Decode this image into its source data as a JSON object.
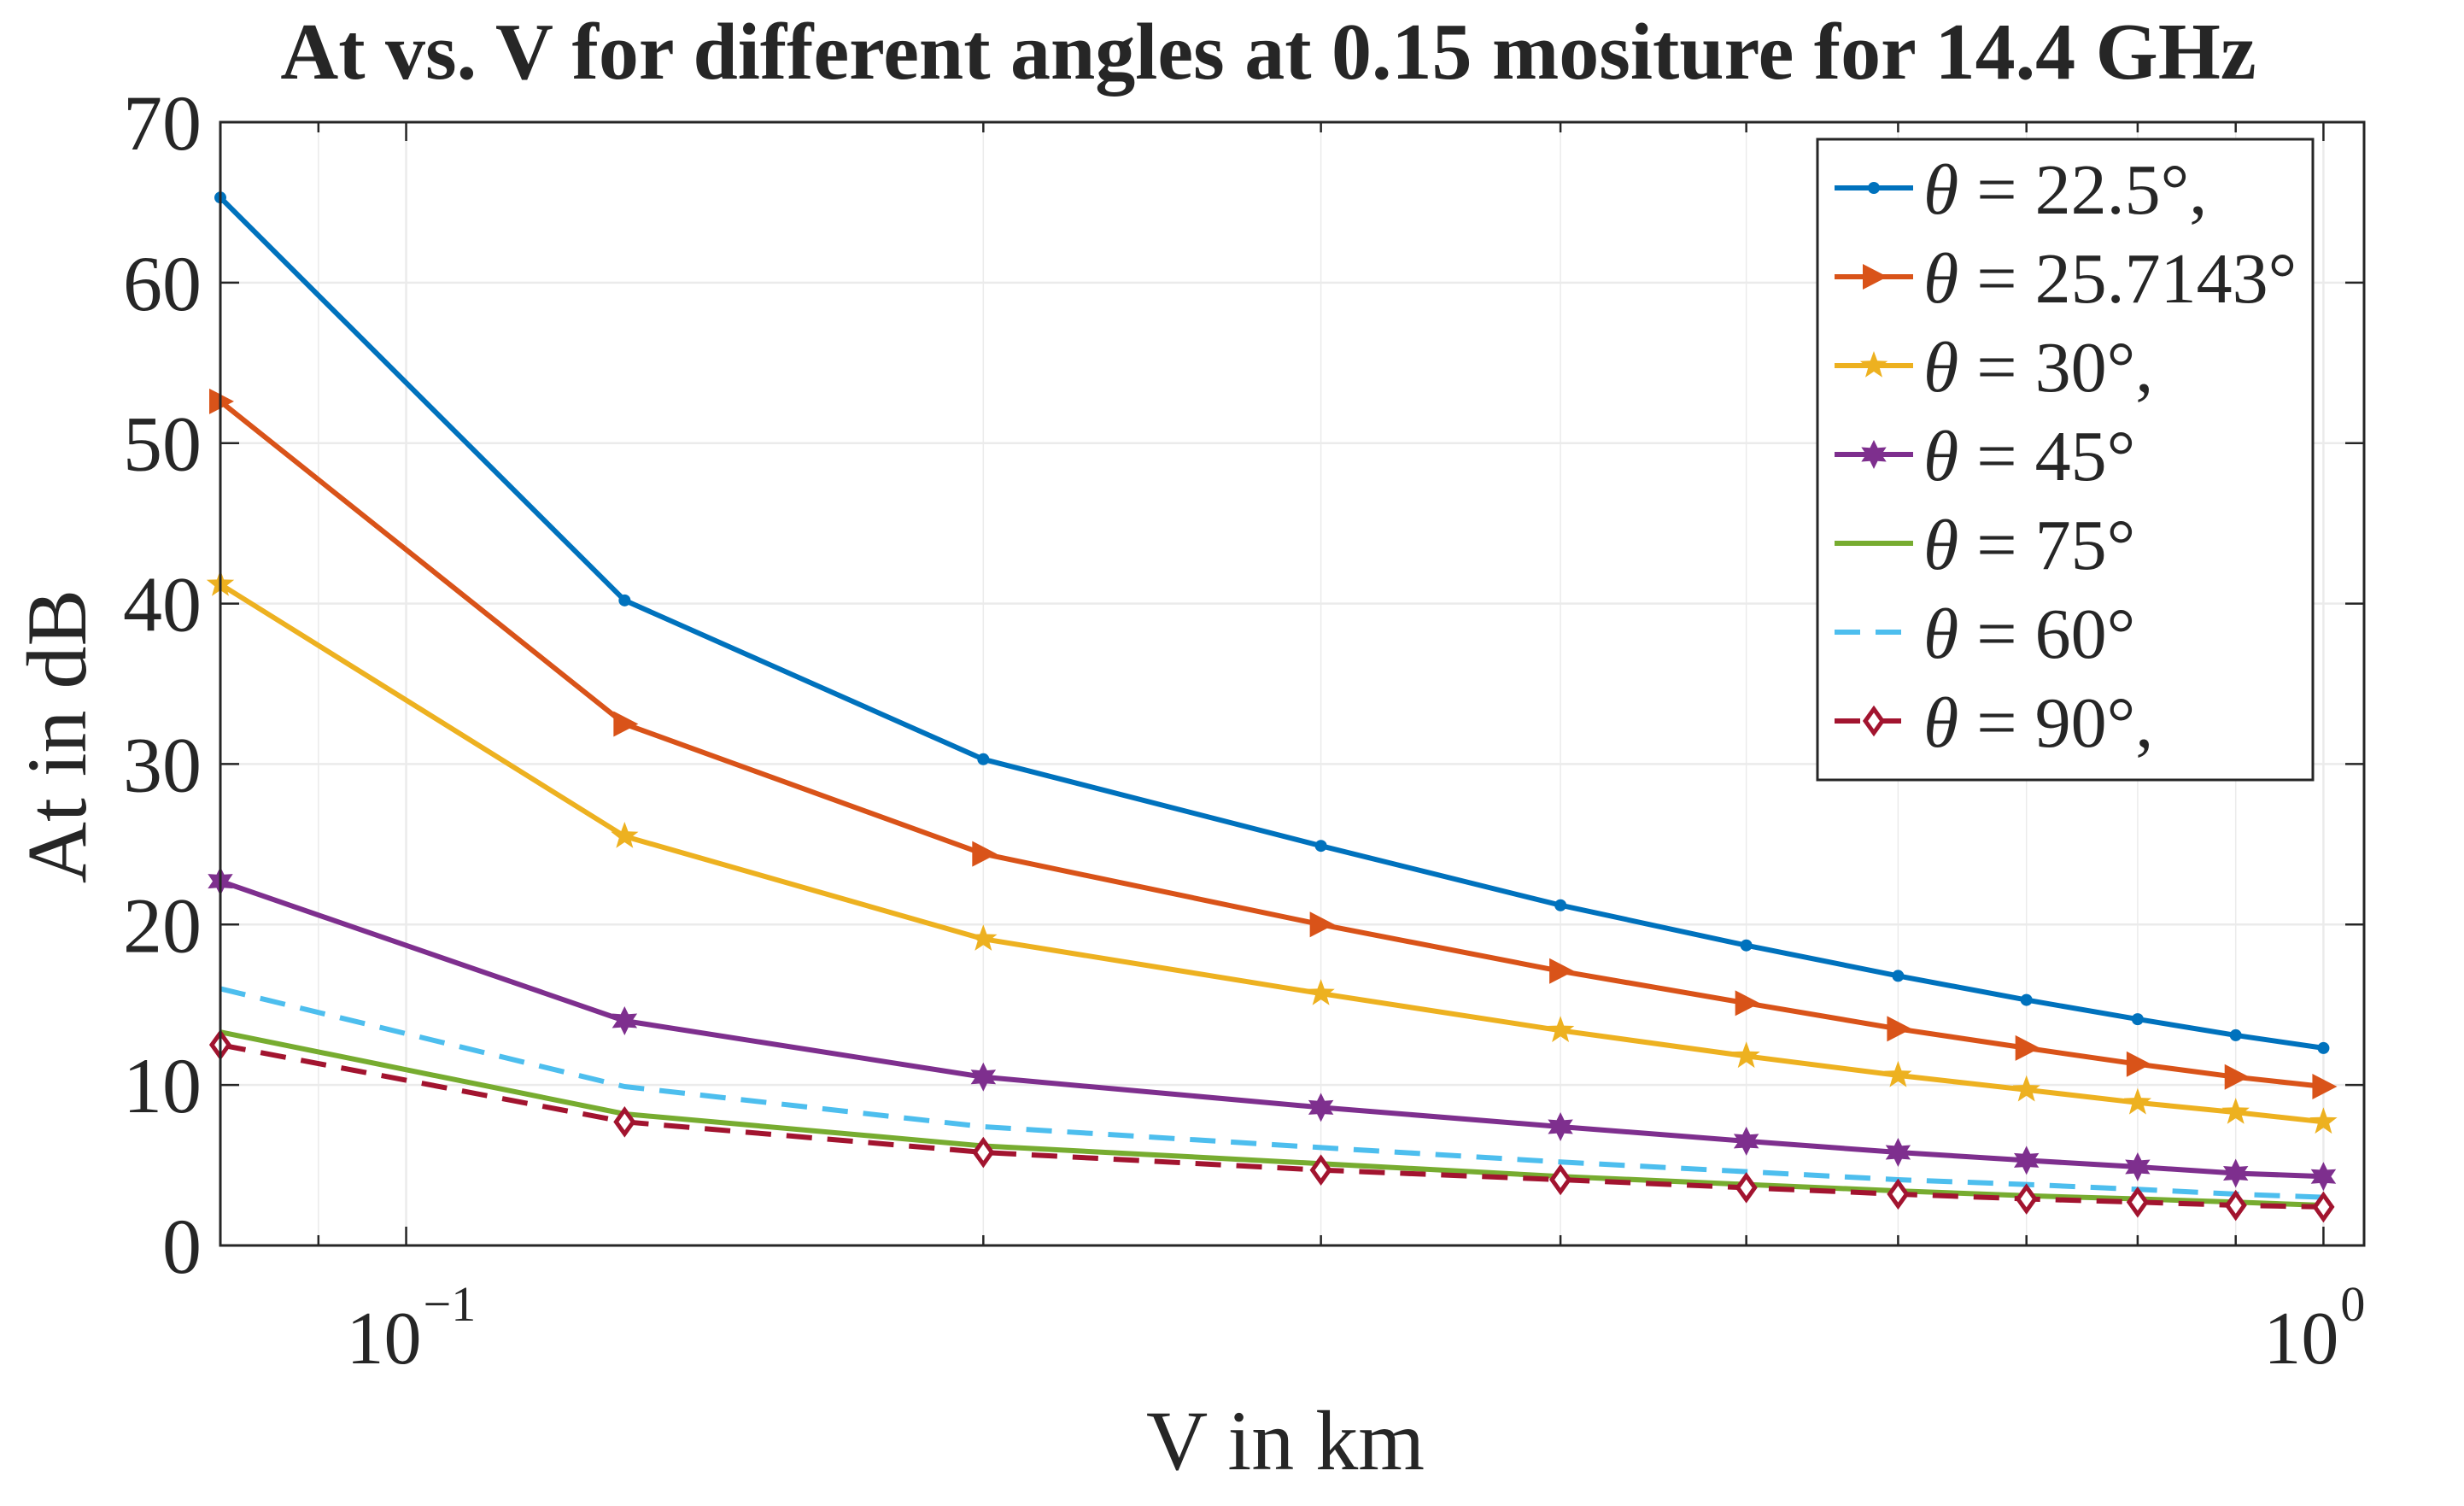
{
  "chart_data": {
    "type": "line",
    "title": "At vs. V for different angles at 0.15 mositure for 14.4 GHz",
    "xlabel": "V in km",
    "ylabel": "At in dB",
    "xscale": "log",
    "xlim": [
      0.08,
      1.05
    ],
    "ylim": [
      0,
      70
    ],
    "yticks": [
      0,
      10,
      20,
      30,
      40,
      50,
      60,
      70
    ],
    "xticks": [
      {
        "value": 0.1,
        "base": "10",
        "exp": "−1"
      },
      {
        "value": 1,
        "base": "10",
        "exp": "0"
      }
    ],
    "grid": true,
    "legend_position": "top-right",
    "x": [
      0.08,
      0.13,
      0.2,
      0.3,
      0.4,
      0.5,
      0.6,
      0.7,
      0.8,
      0.9,
      1.0
    ],
    "series": [
      {
        "name": "θ = 22.5°,",
        "theta": "22.5°,",
        "color": "#0072BD",
        "marker": "point",
        "dash": false,
        "x": [
          0.08,
          0.13,
          0.2,
          0.3,
          0.4,
          0.5,
          0.6,
          0.7,
          0.8,
          0.9,
          1.0
        ],
        "values": [
          65.3,
          40.2,
          30.3,
          24.9,
          21.2,
          18.7,
          16.8,
          15.3,
          14.1,
          13.1,
          12.3
        ]
      },
      {
        "name": "θ = 25.7143°",
        "theta": "25.7143°",
        "color": "#D95319",
        "marker": "triangle-right",
        "dash": false,
        "x": [
          0.08,
          0.13,
          0.2,
          0.3,
          0.4,
          0.5,
          0.6,
          0.7,
          0.8,
          0.9,
          1.0
        ],
        "values": [
          52.6,
          32.5,
          24.4,
          20.0,
          17.1,
          15.1,
          13.5,
          12.3,
          11.3,
          10.5,
          9.9
        ]
      },
      {
        "name": "θ = 30°,",
        "theta": "30°,",
        "color": "#EDB120",
        "marker": "star",
        "dash": false,
        "x": [
          0.08,
          0.13,
          0.2,
          0.3,
          0.4,
          0.5,
          0.6,
          0.7,
          0.8,
          0.9,
          1.0
        ],
        "values": [
          41.2,
          25.5,
          19.1,
          15.7,
          13.4,
          11.8,
          10.6,
          9.7,
          8.9,
          8.3,
          7.7
        ]
      },
      {
        "name": "θ = 45°",
        "theta": "45°",
        "color": "#7E2F8E",
        "marker": "hexagram",
        "dash": false,
        "x": [
          0.08,
          0.13,
          0.2,
          0.3,
          0.4,
          0.5,
          0.6,
          0.7,
          0.8,
          0.9,
          1.0
        ],
        "values": [
          22.7,
          14.0,
          10.5,
          8.6,
          7.4,
          6.5,
          5.8,
          5.3,
          4.9,
          4.5,
          4.3
        ]
      },
      {
        "name": "θ = 75°",
        "theta": "75°",
        "color": "#77AC30",
        "marker": "none",
        "dash": false,
        "x": [
          0.08,
          0.13,
          0.2,
          0.3,
          0.4,
          0.5,
          0.6,
          0.7,
          0.8,
          0.9,
          1.0
        ],
        "values": [
          13.3,
          8.2,
          6.2,
          5.1,
          4.3,
          3.8,
          3.4,
          3.1,
          2.9,
          2.7,
          2.5
        ]
      },
      {
        "name": "θ = 60°",
        "theta": "60°",
        "color": "#4DBEEE",
        "marker": "none",
        "dash": true,
        "x": [
          0.08,
          0.13,
          0.2,
          0.3,
          0.4,
          0.5,
          0.6,
          0.7,
          0.8,
          0.9,
          1.0
        ],
        "values": [
          16.0,
          9.9,
          7.4,
          6.1,
          5.2,
          4.6,
          4.1,
          3.8,
          3.5,
          3.2,
          3.0
        ]
      },
      {
        "name": "θ = 90°,",
        "theta": "90°,",
        "color": "#A2142F",
        "marker": "diamond",
        "dash": true,
        "x": [
          0.08,
          0.13,
          0.2,
          0.3,
          0.4,
          0.5,
          0.6,
          0.7,
          0.8,
          0.9,
          1.0
        ],
        "values": [
          12.5,
          7.7,
          5.8,
          4.7,
          4.1,
          3.6,
          3.2,
          2.9,
          2.7,
          2.5,
          2.4
        ]
      }
    ]
  }
}
